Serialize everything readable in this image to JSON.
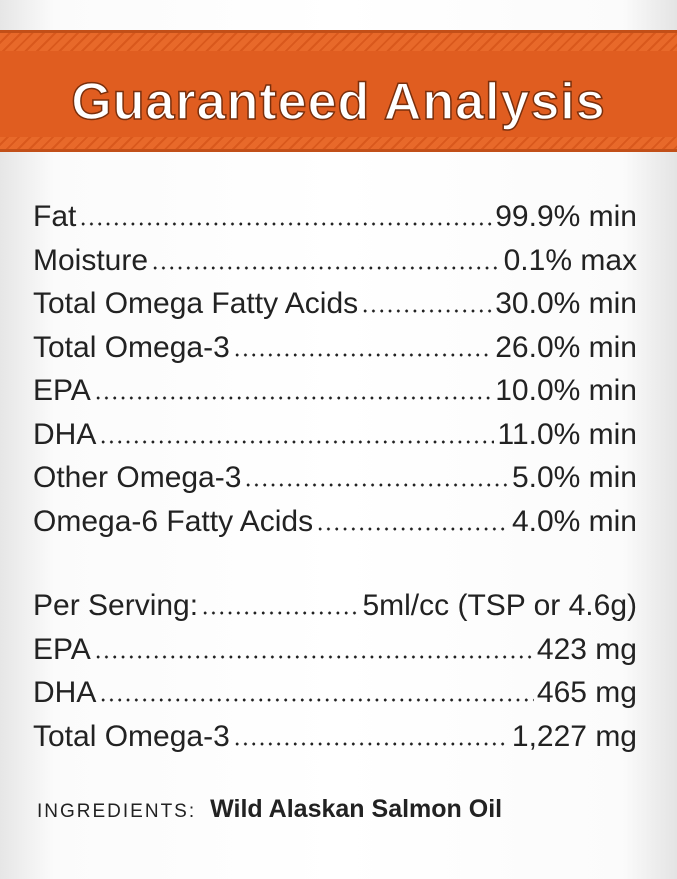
{
  "header": {
    "title": "Guaranteed Analysis"
  },
  "analysis": [
    {
      "label": "Fat",
      "value": "99.9% min"
    },
    {
      "label": "Moisture",
      "value": "0.1% max"
    },
    {
      "label": "Total Omega Fatty Acids",
      "value": "30.0% min"
    },
    {
      "label": "Total Omega-3",
      "value": "26.0% min"
    },
    {
      "label": "EPA",
      "value": "10.0% min"
    },
    {
      "label": "DHA",
      "value": "11.0% min"
    },
    {
      "label": "Other Omega-3",
      "value": "5.0% min"
    },
    {
      "label": "Omega-6 Fatty Acids",
      "value": "4.0% min"
    }
  ],
  "serving": [
    {
      "label": "Per Serving:",
      "value": "5ml/cc (TSP or 4.6g)"
    },
    {
      "label": "EPA",
      "value": "423 mg"
    },
    {
      "label": "DHA",
      "value": "465 mg"
    },
    {
      "label": "Total Omega-3",
      "value": "1,227 mg"
    }
  ],
  "ingredients": {
    "label": "INGREDIENTS:",
    "value": "Wild Alaskan Salmon Oil"
  }
}
